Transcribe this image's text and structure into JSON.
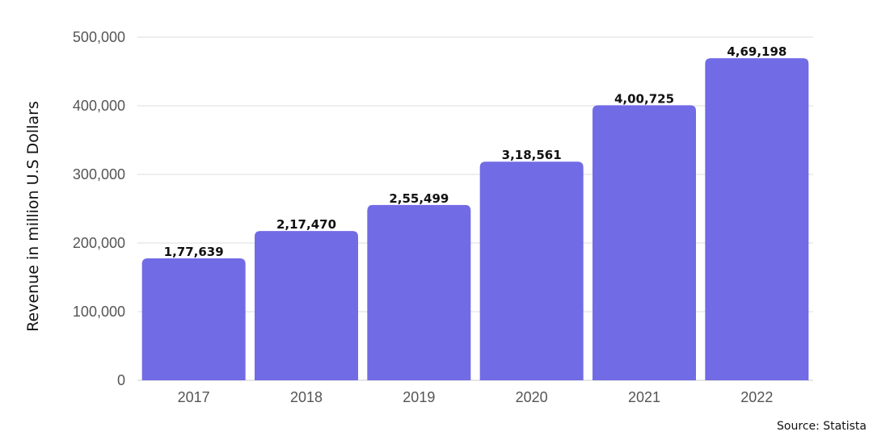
{
  "chart_data": {
    "type": "bar",
    "categories": [
      "2017",
      "2018",
      "2019",
      "2020",
      "2021",
      "2022"
    ],
    "values": [
      177639,
      217470,
      255499,
      318561,
      400725,
      469198
    ],
    "value_labels": [
      "1,77,639",
      "2,17,470",
      "2,55,499",
      "3,18,561",
      "4,00,725",
      "4,69,198"
    ],
    "ylabel": "Revenue in million U.S Dollars",
    "ylim": [
      0,
      500000
    ],
    "yticks": [
      0,
      100000,
      200000,
      300000,
      400000,
      500000
    ],
    "ytick_labels": [
      "0",
      "100,000",
      "200,000",
      "300,000",
      "400,000",
      "500,000"
    ],
    "grid": true,
    "bar_color": "#716be6",
    "source": "Source: Statista"
  }
}
